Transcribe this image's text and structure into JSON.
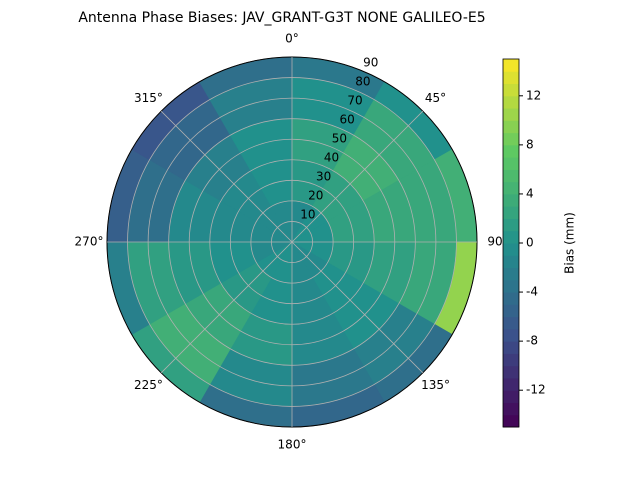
{
  "chart_data": {
    "type": "polar_contour",
    "title": "Antenna Phase Biases: JAV_GRANT-G3T   NONE GALILEO-E5",
    "azimuth_edges": [
      0,
      30,
      60,
      90,
      120,
      150,
      180,
      210,
      240,
      270,
      300,
      330,
      360
    ],
    "radius_edges": [
      0,
      20,
      40,
      60,
      80,
      90
    ],
    "values": [
      [
        -1,
        0,
        0,
        0,
        -1,
        -1,
        0,
        0,
        -1,
        -1,
        -1,
        -1
      ],
      [
        1,
        2,
        2,
        1,
        0,
        -1,
        0,
        1,
        0,
        -1,
        -1,
        0
      ],
      [
        2,
        4,
        3,
        2,
        0,
        -1,
        1,
        3,
        1,
        -1,
        -2,
        0
      ],
      [
        0,
        3,
        3,
        3,
        -2,
        -3,
        -1,
        4,
        2,
        -4,
        -5,
        -2
      ],
      [
        -3,
        0,
        4,
        10,
        -4,
        -5,
        -4,
        2,
        -2,
        -6,
        -7,
        -4
      ]
    ],
    "rlim": [
      0,
      90
    ],
    "rticks": [
      10,
      20,
      30,
      40,
      50,
      60,
      70,
      80,
      90
    ],
    "thetaticks": [
      {
        "value": 0,
        "label": "0°"
      },
      {
        "value": 45,
        "label": "45°"
      },
      {
        "value": 90,
        "label": "90"
      },
      {
        "value": 135,
        "label": "135°"
      },
      {
        "value": 180,
        "label": "180°"
      },
      {
        "value": 225,
        "label": "225°"
      },
      {
        "value": 270,
        "label": "270°"
      },
      {
        "value": 315,
        "label": "315°"
      }
    ],
    "colormap": "viridis",
    "clim": [
      -15,
      15
    ],
    "cticks": [
      -12,
      -8,
      -4,
      0,
      4,
      8,
      12
    ],
    "colorbar_label": "Bias (mm)",
    "grid": true
  }
}
